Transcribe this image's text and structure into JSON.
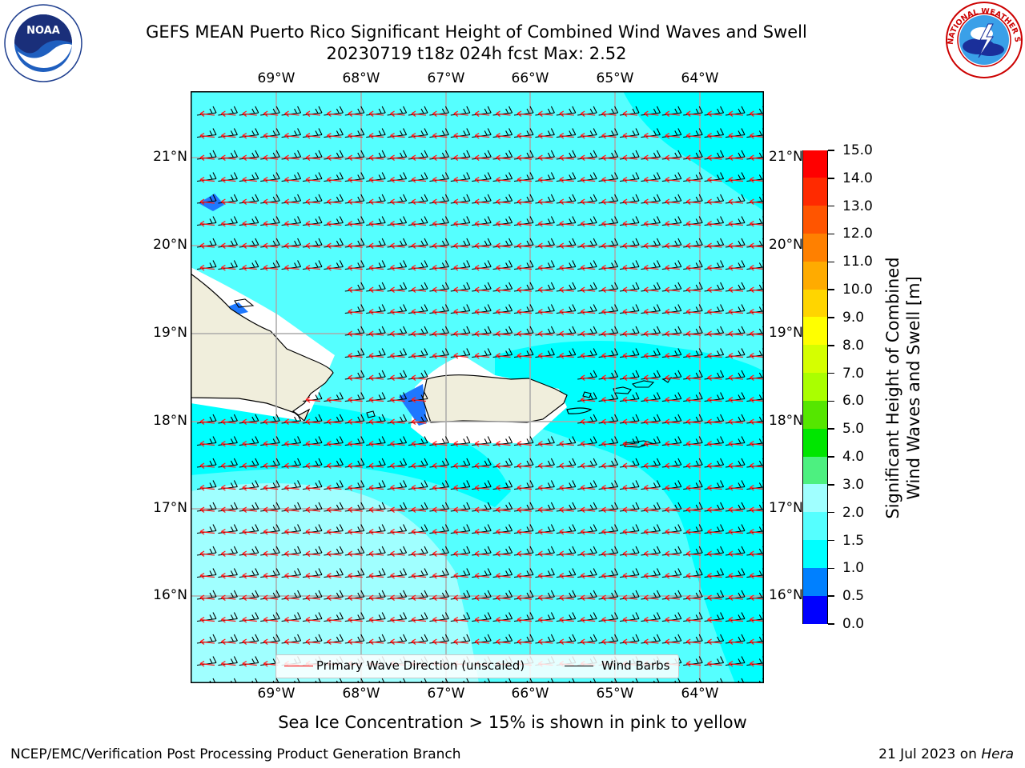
{
  "title_line1": "GEFS MEAN Puerto Rico Significant Height of Combined Wind Waves and Swell",
  "title_line2": "20230719 t18z 024h fcst   Max: 2.52",
  "lon_labels": [
    "69°W",
    "68°W",
    "67°W",
    "66°W",
    "65°W",
    "64°W"
  ],
  "lat_labels": [
    "21°N",
    "20°N",
    "19°N",
    "18°N",
    "17°N",
    "16°N"
  ],
  "colorbar": {
    "ticks": [
      "15.0",
      "14.0",
      "13.0",
      "12.0",
      "11.0",
      "10.0",
      "9.0",
      "8.0",
      "7.0",
      "6.0",
      "5.0",
      "4.0",
      "3.0",
      "2.0",
      "1.5",
      "1.0",
      "0.5",
      "0.0"
    ],
    "colors": [
      "#ff0000",
      "#ff2a00",
      "#ff5500",
      "#ff8000",
      "#ffab00",
      "#ffd500",
      "#ffff00",
      "#d5ff00",
      "#aaff00",
      "#55e600",
      "#00e600",
      "#4df080",
      "#a0ffff",
      "#55ffff",
      "#00ffff",
      "#0080ff",
      "#0000ff"
    ],
    "title_line1": "Significant Height of Combined",
    "title_line2": "Wind Waves and Swell [m]"
  },
  "legend": {
    "wave_label": "Primary Wave Direction (unscaled)",
    "barb_label": "Wind Barbs",
    "wave_color": "#ff0000",
    "barb_color": "#000000"
  },
  "note": "Sea Ice Concentration > 15% is shown in pink to yellow",
  "footer_left": "NCEP/EMC/Verification Post Processing Product Generation Branch",
  "footer_right_date": "21 Jul 2023 on",
  "footer_right_host": "Hera",
  "logos": {
    "left": "noaa-logo",
    "right": "national-weather-service-logo",
    "noaa_text": "NOAA",
    "nws_text": "NATIONAL WEATHER SERVICE"
  },
  "map_colors": {
    "sea_light": "#55ffff",
    "sea_dark": "#00ffff",
    "sea_pale": "#a0ffff",
    "land": "#f0eedc",
    "shallow": "#1e78ff"
  }
}
